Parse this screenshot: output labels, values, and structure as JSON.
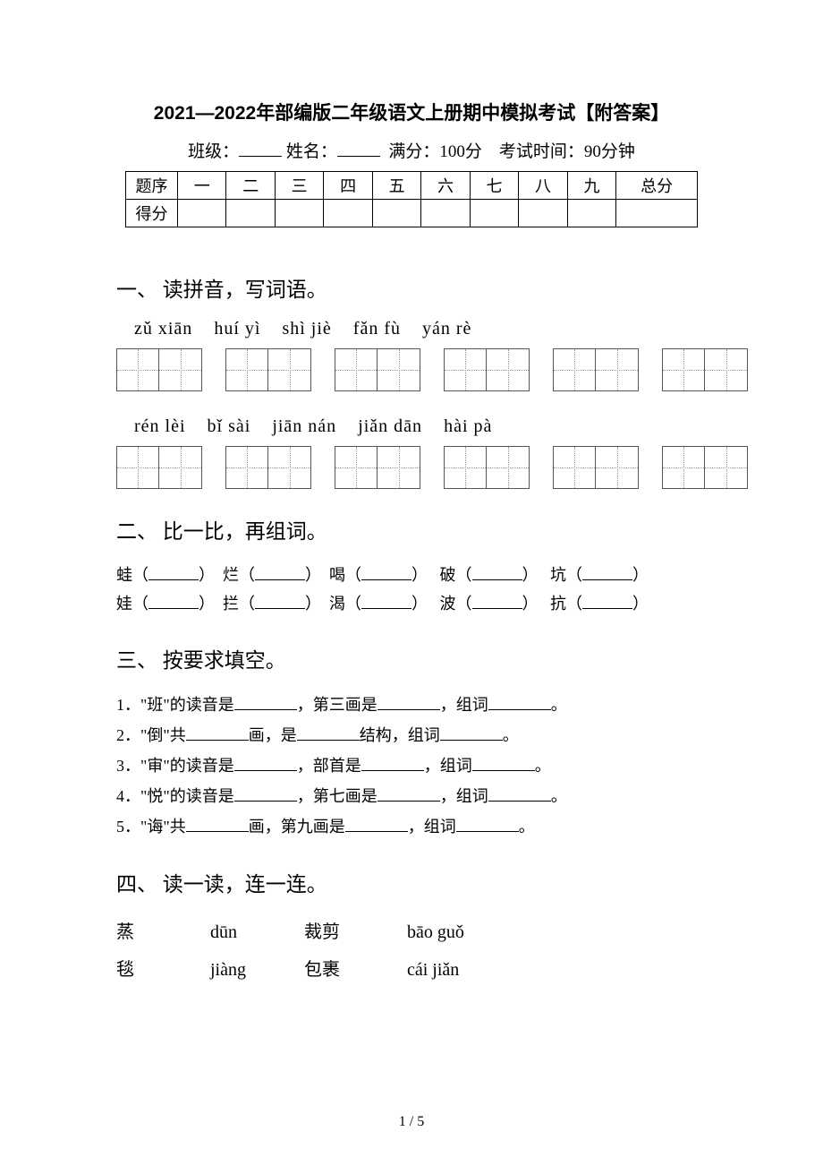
{
  "title": "2021—2022年部编版二年级语文上册期中模拟考试【附答案】",
  "meta": {
    "class_label": "班级：",
    "name_label": "姓名：",
    "full_score": "满分：100分",
    "time": "考试时间：90分钟"
  },
  "score_table": {
    "row1": [
      "题序",
      "一",
      "二",
      "三",
      "四",
      "五",
      "六",
      "七",
      "八",
      "九",
      "总分"
    ],
    "row2_label": "得分"
  },
  "q1": {
    "heading": "一、 读拼音，写词语。",
    "pinyin_row1": [
      "zǔ xiān",
      "huí yì",
      "shì jiè",
      "fǎn fù",
      "yán rè"
    ],
    "pinyin_row2": [
      "rén lèi",
      "bǐ sài",
      "jiān nán",
      "jiǎn dān",
      "hài pà"
    ]
  },
  "q2": {
    "heading": "二、 比一比，再组词。",
    "row1": [
      "蛙",
      "烂",
      "喝",
      "破",
      "坑"
    ],
    "row2": [
      "娃",
      "拦",
      "渴",
      "波",
      "抗"
    ]
  },
  "q3": {
    "heading": "三、 按要求填空。",
    "items": [
      {
        "n": "1．",
        "parts": [
          "\"班\"的读音是",
          "，第三画是",
          "，组词",
          "。"
        ]
      },
      {
        "n": "2．",
        "parts": [
          "\"倒\"共",
          "画，是",
          "结构，组词",
          "。"
        ]
      },
      {
        "n": "3．",
        "parts": [
          "\"审\"的读音是",
          "，部首是",
          "，组词",
          "。"
        ]
      },
      {
        "n": "4．",
        "parts": [
          "\"悦\"的读音是",
          "，第七画是",
          "，组词",
          "。"
        ]
      },
      {
        "n": "5．",
        "parts": [
          "\"诲\"共",
          "画，第九画是",
          "，组词",
          "。"
        ]
      }
    ]
  },
  "q4": {
    "heading": "四、 读一读，连一连。",
    "rows": [
      [
        "蒸",
        "dūn",
        "裁剪",
        "bāo guǒ"
      ],
      [
        "毯",
        "jiàng",
        "包裹",
        "cái jiǎn"
      ]
    ]
  },
  "page_number": "1 / 5"
}
